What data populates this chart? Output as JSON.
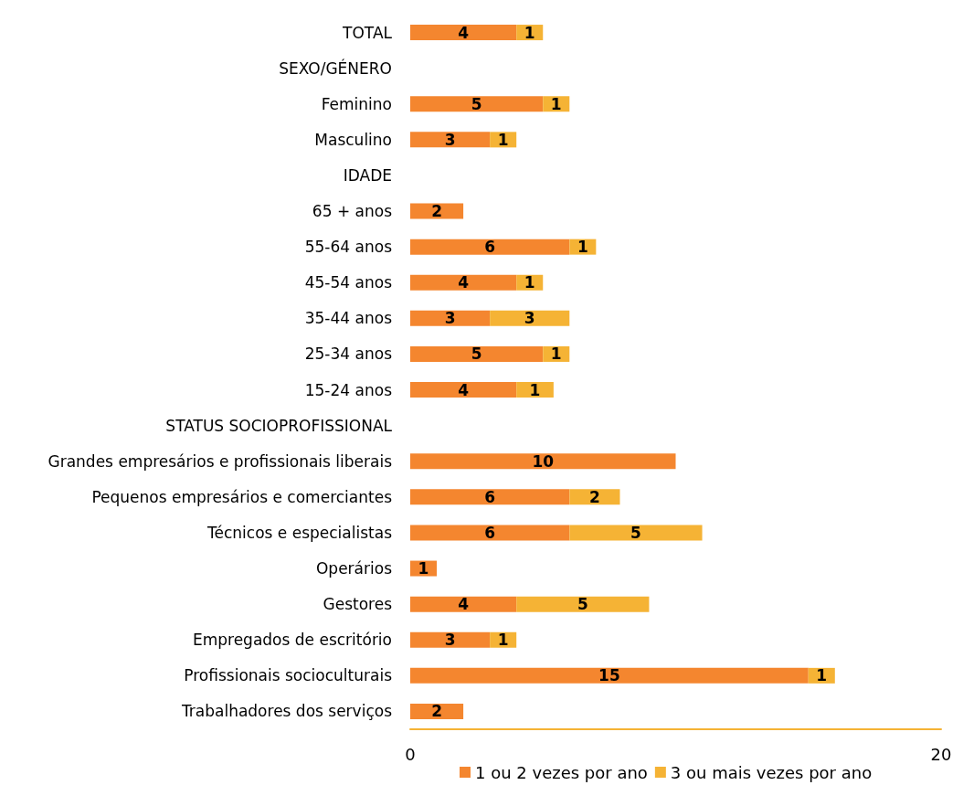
{
  "chart_data": {
    "type": "bar",
    "orientation": "horizontal",
    "stacked": true,
    "categories": [
      "TOTAL",
      "SEXO/GÉNERO",
      "Feminino",
      "Masculino",
      "IDADE",
      "65 + anos",
      "55-64 anos",
      "45-54 anos",
      "35-44 anos",
      "25-34 anos",
      "15-24 anos",
      "STATUS SOCIOPROFISSIONAL",
      "Grandes empresários e profissionais liberais",
      "Pequenos empresários e comerciantes",
      "Técnicos e especialistas",
      "Operários",
      "Gestores",
      "Empregados de escritório",
      "Profissionais socioculturais",
      "Trabalhadores dos serviços"
    ],
    "series": [
      {
        "name": "1 ou 2 vezes por ano",
        "color": "#f4862f",
        "values": [
          4,
          null,
          5,
          3,
          null,
          2,
          6,
          4,
          3,
          5,
          4,
          null,
          10,
          6,
          6,
          1,
          4,
          3,
          15,
          2
        ],
        "value_labels": [
          "4",
          null,
          "5",
          "3",
          null,
          "2",
          "6",
          "4",
          "3",
          "5",
          "4",
          null,
          "10",
          "6",
          "6",
          "1",
          "4",
          "3",
          "15",
          "2"
        ]
      },
      {
        "name": "3 ou mais vezes por ano",
        "color": "#f5b335",
        "values": [
          1,
          null,
          1,
          1,
          null,
          null,
          1,
          1,
          3,
          1,
          1.4,
          null,
          null,
          1.9,
          5,
          null,
          5,
          1,
          1,
          null
        ],
        "value_labels": [
          "1",
          null,
          "1",
          "1",
          null,
          null,
          "1",
          "1",
          "3",
          "1",
          "1",
          null,
          null,
          "2",
          "5",
          null,
          "5",
          "1",
          "1",
          null
        ]
      }
    ],
    "xlim": [
      0,
      20
    ],
    "xticks": [
      0,
      20
    ],
    "grid": false,
    "legend": "bottom"
  }
}
